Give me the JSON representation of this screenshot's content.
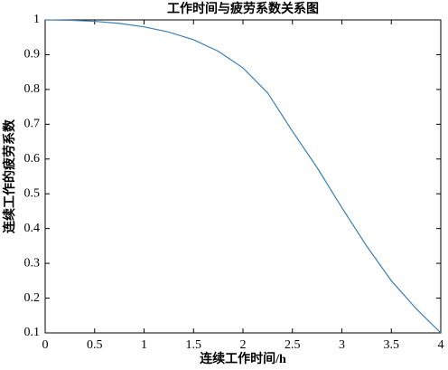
{
  "chart_data": {
    "type": "line",
    "title": "工作时间与疲劳系数关系图",
    "xlabel": "连续工作时间/h",
    "ylabel": "连续工作的疲劳系数",
    "x": [
      0,
      0.25,
      0.5,
      0.75,
      1,
      1.25,
      1.5,
      1.75,
      2,
      2.25,
      2.5,
      2.75,
      3,
      3.25,
      3.5,
      3.75,
      4
    ],
    "series": [
      {
        "color": "#3b7fb6",
        "values": [
          1,
          0.999,
          0.996,
          0.99,
          0.98,
          0.965,
          0.943,
          0.91,
          0.862,
          0.79,
          0.68,
          0.575,
          0.46,
          0.35,
          0.25,
          0.17,
          0.1
        ]
      }
    ],
    "xlim": [
      0,
      4
    ],
    "ylim": [
      0.1,
      1
    ],
    "xticks": [
      0,
      0.5,
      1,
      1.5,
      2,
      2.5,
      3,
      3.5,
      4
    ],
    "yticks": [
      0.1,
      0.2,
      0.3,
      0.4,
      0.5,
      0.6,
      0.7,
      0.8,
      0.9,
      1
    ]
  }
}
